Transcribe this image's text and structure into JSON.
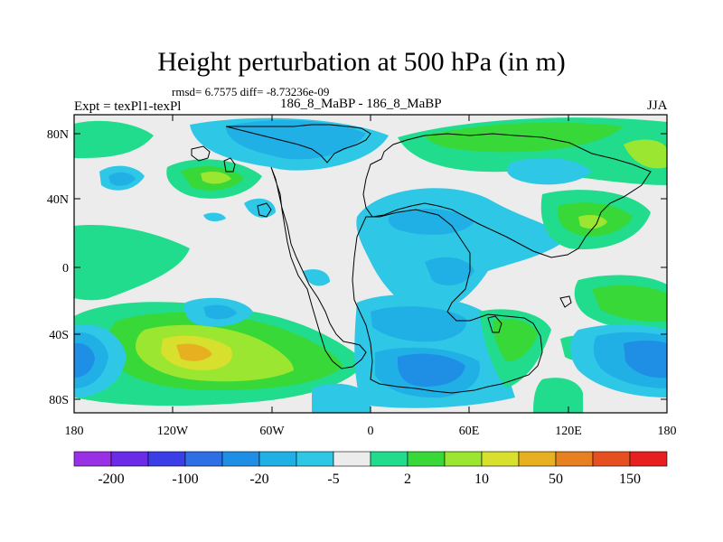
{
  "title": "Height perturbation at 500 hPa (in m)",
  "stats_line": "rmsd= 6.7575 diff= -8.73236e-09",
  "left_label": "Expt = texPl1-texPl",
  "center_label": "186_8_MaBP - 186_8_MaBP",
  "right_label": "JJA",
  "lat_ticks": [
    "80N",
    "40N",
    "0",
    "40S",
    "80S"
  ],
  "lon_ticks": [
    "180",
    "120W",
    "60W",
    "0",
    "60E",
    "120E",
    "180"
  ],
  "colorbar": {
    "colors": [
      "#9a30e6",
      "#6a2ce6",
      "#3b3ee6",
      "#2e6fe6",
      "#1f8fe6",
      "#20b0e6",
      "#2ec8e6",
      "#ececec",
      "#20dc8c",
      "#38d838",
      "#9ae630",
      "#d7e02c",
      "#e6b020",
      "#e68020",
      "#e65020",
      "#e62020"
    ],
    "labels": [
      "-200",
      "-100",
      "-20",
      "-5",
      "2",
      "10",
      "50",
      "150"
    ]
  },
  "palette": {
    "background": "#ececec",
    "neg_light": "#2ec8e6",
    "neg_med": "#20b0e6",
    "neg_strong": "#1f8fe6",
    "neg_deep": "#2e6fe6",
    "pos_light": "#20dc8c",
    "pos_med": "#38d838",
    "pos_strong": "#9ae630",
    "pos_deep": "#d7e02c",
    "pos_max": "#e6b020"
  }
}
